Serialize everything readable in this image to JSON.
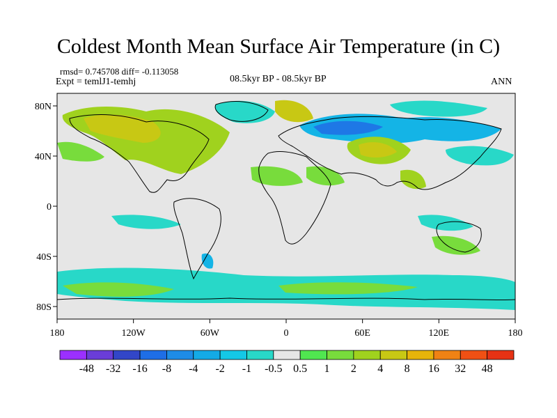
{
  "title": "Coldest Month Mean Surface Air Temperature (in C)",
  "stats": "rmsd= 0.745708 diff= -0.113058",
  "expt": "Expt = temlJ1-temhj",
  "period": "08.5kyr BP - 08.5kyr BP",
  "season": "ANN",
  "colors": {
    "ocean_neutral": "#e6e6e6",
    "coast": "#000000",
    "cool_light": "#28d8c8",
    "cool_mid": "#14b4e6",
    "cool_dark": "#1e78e6",
    "warm_light": "#78dc3c",
    "warm_mid": "#a0d21e",
    "warm_dark": "#c8c814"
  },
  "chart_data": {
    "type": "heatmap",
    "projection": "cylindrical-equidistant",
    "x_range": [
      -180,
      180
    ],
    "y_range": [
      -90,
      90
    ],
    "x_ticks": [
      {
        "value": -180,
        "label": "180"
      },
      {
        "value": -120,
        "label": "120W"
      },
      {
        "value": -60,
        "label": "60W"
      },
      {
        "value": 0,
        "label": "0"
      },
      {
        "value": 60,
        "label": "60E"
      },
      {
        "value": 120,
        "label": "120E"
      },
      {
        "value": 180,
        "label": "180"
      }
    ],
    "y_ticks": [
      {
        "value": 80,
        "label": "80N"
      },
      {
        "value": 40,
        "label": "40N"
      },
      {
        "value": 0,
        "label": "0"
      },
      {
        "value": -40,
        "label": "40S"
      },
      {
        "value": -80,
        "label": "80S"
      }
    ],
    "colorbar": {
      "colors": [
        "#9b30ff",
        "#6a3dd8",
        "#3246c8",
        "#1e6ee6",
        "#1e8ce6",
        "#14aae6",
        "#14c8e6",
        "#28d8c8",
        "#e6e6e6",
        "#50e650",
        "#78dc3c",
        "#a0d21e",
        "#c8c814",
        "#e6b40a",
        "#f08214",
        "#f05014",
        "#e63214"
      ],
      "labels": [
        "-48",
        "-32",
        "-16",
        "-8",
        "-4",
        "-2",
        "-1",
        "-0.5",
        "0.5",
        "1",
        "2",
        "4",
        "8",
        "16",
        "32",
        "48"
      ]
    }
  }
}
